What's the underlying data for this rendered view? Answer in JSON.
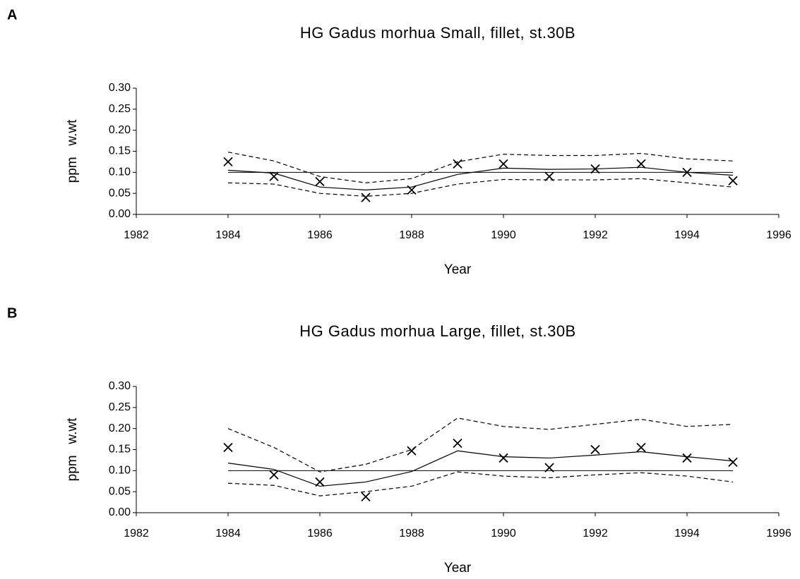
{
  "chart_data": [
    {
      "type": "line",
      "panel": "A",
      "title": "HG Gadus morhua Small, fillet, st.30B",
      "xlabel": "Year",
      "ylabel": "ppm   w.wt",
      "xlim": [
        1982,
        1996
      ],
      "xticks": [
        1982,
        1984,
        1986,
        1988,
        1990,
        1992,
        1994,
        1996
      ],
      "ylim": [
        0,
        0.3
      ],
      "yticks": [
        {
          "value": 0,
          "label": "0.00"
        },
        {
          "value": 0.05,
          "label": "0.05"
        },
        {
          "value": 0.1,
          "label": "0.10"
        },
        {
          "value": 0.15,
          "label": "0.15"
        },
        {
          "value": 0.2,
          "label": "0.20"
        },
        {
          "value": 0.25,
          "label": "0.25"
        },
        {
          "value": 0.3,
          "label": "0.30"
        }
      ],
      "x": [
        1984,
        1985,
        1986,
        1987,
        1988,
        1989,
        1990,
        1991,
        1992,
        1993,
        1994,
        1995
      ],
      "series": [
        {
          "style": "marker",
          "color": "#000000",
          "values": [
            0.125,
            0.09,
            0.078,
            0.04,
            0.058,
            0.12,
            0.12,
            0.09,
            0.108,
            0.12,
            0.1,
            0.08
          ]
        },
        {
          "style": "solid",
          "color": "#000000",
          "values": [
            0.105,
            0.098,
            0.065,
            0.058,
            0.065,
            0.095,
            0.11,
            0.107,
            0.108,
            0.112,
            0.1,
            0.093
          ]
        },
        {
          "style": "dashed",
          "color": "#000000",
          "values": [
            0.148,
            0.127,
            0.09,
            0.075,
            0.085,
            0.125,
            0.143,
            0.14,
            0.14,
            0.145,
            0.132,
            0.127
          ]
        },
        {
          "style": "dashed",
          "color": "#000000",
          "values": [
            0.075,
            0.072,
            0.05,
            0.043,
            0.05,
            0.072,
            0.083,
            0.082,
            0.082,
            0.085,
            0.075,
            0.065
          ]
        },
        {
          "style": "thin",
          "color": "#000000",
          "values": [
            0.1,
            0.1,
            0.1,
            0.1,
            0.1,
            0.1,
            0.1,
            0.1,
            0.1,
            0.1,
            0.1,
            0.1
          ]
        }
      ]
    },
    {
      "type": "line",
      "panel": "B",
      "title": "HG Gadus morhua Large, fillet, st.30B",
      "xlabel": "Year",
      "ylabel": "ppm   w.wt",
      "xlim": [
        1982,
        1996
      ],
      "xticks": [
        1982,
        1984,
        1986,
        1988,
        1990,
        1992,
        1994,
        1996
      ],
      "ylim": [
        0,
        0.3
      ],
      "yticks": [
        {
          "value": 0,
          "label": "0.00"
        },
        {
          "value": 0.05,
          "label": "0.05"
        },
        {
          "value": 0.1,
          "label": "0.10"
        },
        {
          "value": 0.15,
          "label": "0.15"
        },
        {
          "value": 0.2,
          "label": "0.20"
        },
        {
          "value": 0.25,
          "label": "0.25"
        },
        {
          "value": 0.3,
          "label": "0.30"
        }
      ],
      "x": [
        1984,
        1985,
        1986,
        1987,
        1988,
        1989,
        1990,
        1991,
        1992,
        1993,
        1994,
        1995
      ],
      "series": [
        {
          "style": "marker",
          "color": "#000000",
          "values": [
            0.155,
            0.09,
            0.073,
            0.038,
            0.147,
            0.165,
            0.13,
            0.107,
            0.15,
            0.155,
            0.13,
            0.12
          ]
        },
        {
          "style": "solid",
          "color": "#000000",
          "values": [
            0.118,
            0.103,
            0.063,
            0.073,
            0.098,
            0.147,
            0.133,
            0.13,
            0.137,
            0.145,
            0.133,
            0.123
          ]
        },
        {
          "style": "dashed",
          "color": "#000000",
          "values": [
            0.2,
            0.155,
            0.097,
            0.115,
            0.15,
            0.225,
            0.205,
            0.198,
            0.21,
            0.222,
            0.205,
            0.21
          ]
        },
        {
          "style": "dashed",
          "color": "#000000",
          "values": [
            0.07,
            0.065,
            0.04,
            0.05,
            0.063,
            0.097,
            0.087,
            0.083,
            0.09,
            0.095,
            0.087,
            0.073
          ]
        },
        {
          "style": "thin",
          "color": "#000000",
          "values": [
            0.1,
            0.1,
            0.1,
            0.1,
            0.1,
            0.1,
            0.1,
            0.1,
            0.1,
            0.1,
            0.1,
            0.1
          ]
        }
      ]
    }
  ]
}
